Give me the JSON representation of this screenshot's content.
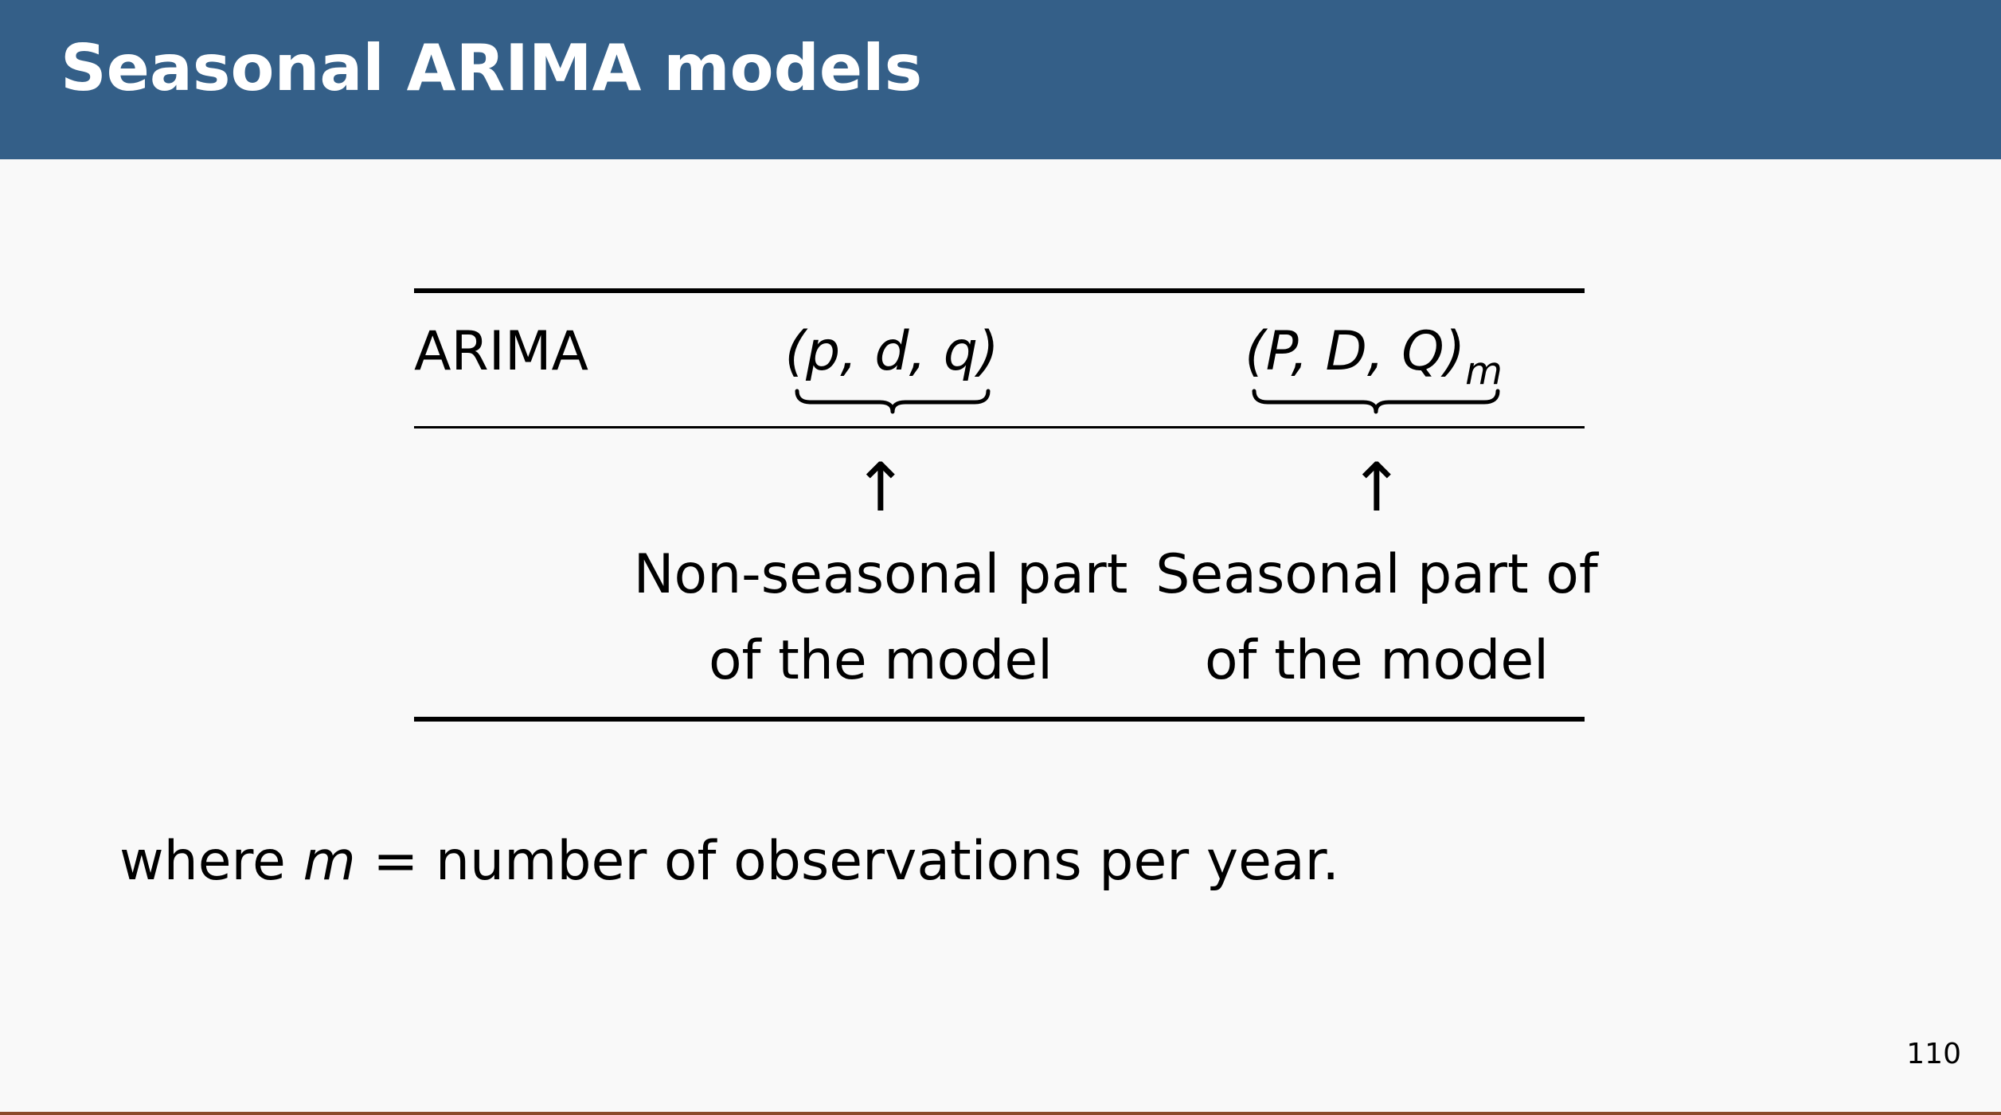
{
  "slide": {
    "title": "Seasonal ARIMA models",
    "page_number": "110"
  },
  "table": {
    "row_label": "ARIMA",
    "nonseasonal_params": "(p, d, q)",
    "seasonal_params": "(P, D, Q)",
    "seasonal_subscript": "m",
    "nonseasonal_desc_line1": "Non-seasonal part",
    "nonseasonal_desc_line2": "of the model",
    "seasonal_desc_line1": "Seasonal part of",
    "seasonal_desc_line2": "of the model",
    "arrow_glyph": "↑"
  },
  "footnote": {
    "prefix": "where ",
    "variable": "m",
    "suffix": " = number of observations per year."
  },
  "colors": {
    "title_bar": "#345f88",
    "background": "#f9f9f9",
    "title_text": "#ffffff"
  }
}
